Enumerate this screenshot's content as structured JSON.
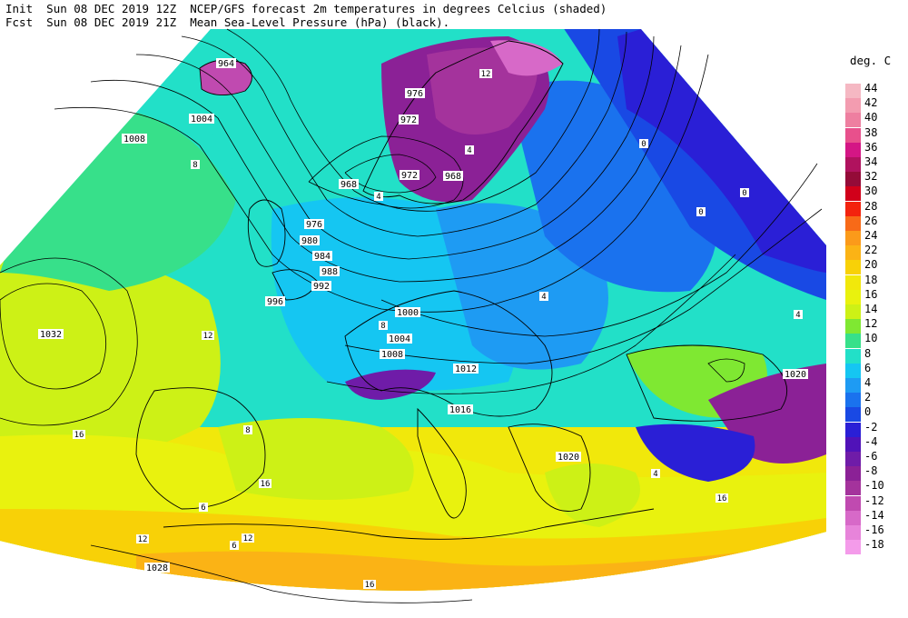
{
  "header": {
    "line1_prefix": "Init",
    "line1_time": "Sun 08 DEC 2019 12Z",
    "line1_title": "NCEP/GFS forecast 2m temperatures in degrees Celcius (shaded)",
    "line2_prefix": "Fcst",
    "line2_time": "Sun 08 DEC 2019 21Z",
    "line2_title": "Mean Sea-Level Pressure (hPa) (black)."
  },
  "legend": {
    "title": "deg. C",
    "items": [
      {
        "label": "44",
        "color": "#f5b8c3"
      },
      {
        "label": "42",
        "color": "#f39cb0"
      },
      {
        "label": "40",
        "color": "#ee7fa0"
      },
      {
        "label": "38",
        "color": "#e8508c"
      },
      {
        "label": "36",
        "color": "#d41685"
      },
      {
        "label": "34",
        "color": "#b0125e"
      },
      {
        "label": "32",
        "color": "#940b38"
      },
      {
        "label": "30",
        "color": "#d1001a"
      },
      {
        "label": "28",
        "color": "#f3230e"
      },
      {
        "label": "26",
        "color": "#f86a18"
      },
      {
        "label": "24",
        "color": "#fb9a1a"
      },
      {
        "label": "22",
        "color": "#fbb315"
      },
      {
        "label": "20",
        "color": "#f8d107"
      },
      {
        "label": "18",
        "color": "#f1e80b"
      },
      {
        "label": "16",
        "color": "#e9f20e"
      },
      {
        "label": "14",
        "color": "#cdf116"
      },
      {
        "label": "12",
        "color": "#7fe832"
      },
      {
        "label": "10",
        "color": "#37e08a"
      },
      {
        "label": "8",
        "color": "#22e0c8"
      },
      {
        "label": "6",
        "color": "#15c6f2"
      },
      {
        "label": "4",
        "color": "#1e9bf3"
      },
      {
        "label": "2",
        "color": "#1a72ee"
      },
      {
        "label": "0",
        "color": "#1949e4"
      },
      {
        "label": "-2",
        "color": "#2a1fd6"
      },
      {
        "label": "-4",
        "color": "#5012b8"
      },
      {
        "label": "-6",
        "color": "#6f1ca8"
      },
      {
        "label": "-8",
        "color": "#8b2196"
      },
      {
        "label": "-10",
        "color": "#a4339c"
      },
      {
        "label": "-12",
        "color": "#c04ab0"
      },
      {
        "label": "-14",
        "color": "#d769c8"
      },
      {
        "label": "-16",
        "color": "#e784da"
      },
      {
        "label": "-18",
        "color": "#f49bea"
      }
    ]
  },
  "isobar_labels": [
    "964",
    "968",
    "972",
    "976",
    "980",
    "984",
    "988",
    "992",
    "996",
    "1000",
    "1004",
    "1008",
    "1012",
    "1016",
    "1020",
    "1028",
    "1032"
  ],
  "map_labels": {
    "p964": "964",
    "p968": "968",
    "p972a": "972",
    "p972b": "972",
    "p976a": "976",
    "p976b": "976",
    "p980": "980",
    "p984": "984",
    "p988": "988",
    "p992": "992",
    "p996": "996",
    "p1000": "1000",
    "p1004a": "1004",
    "p1004b": "1004",
    "p1008a": "1008",
    "p1008b": "1008",
    "p1012": "1012",
    "p1016": "1016",
    "p1020a": "1020",
    "p1020b": "1020",
    "p1028": "1028",
    "p1032": "1032",
    "t8a": "8",
    "t8b": "8",
    "t8c": "8",
    "t12a": "12",
    "t12b": "12",
    "t12c": "12",
    "t16a": "16",
    "t16b": "16",
    "t16c": "16",
    "t16d": "16",
    "t4a": "4",
    "t4b": "4",
    "t4c": "4",
    "t4d": "4",
    "t0a": "0",
    "t0b": "0",
    "t0c": "0",
    "t6a": "6",
    "t6b": "6",
    "tm4": "4",
    "tm12": "12"
  },
  "colors": {
    "land_outline": "#000000",
    "isobar": "#000000"
  }
}
